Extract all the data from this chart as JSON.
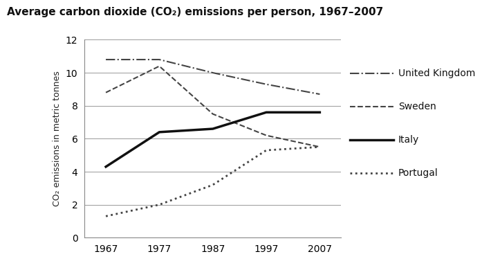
{
  "title": "Average carbon dioxide (CO₂) emissions per person, 1967–2007",
  "ylabel": "CO₂ emissions in metric tonnes",
  "years": [
    1967,
    1977,
    1987,
    1997,
    2007
  ],
  "series": {
    "United Kingdom": {
      "values": [
        10.8,
        10.8,
        10.0,
        9.3,
        8.7
      ],
      "linestyle": "-.",
      "linewidth": 1.5,
      "color": "#444444"
    },
    "Sweden": {
      "values": [
        8.8,
        10.4,
        7.5,
        6.2,
        5.5
      ],
      "linestyle": "--",
      "linewidth": 1.5,
      "color": "#444444"
    },
    "Italy": {
      "values": [
        4.3,
        6.4,
        6.6,
        7.6,
        7.6
      ],
      "linestyle": "-",
      "linewidth": 2.5,
      "color": "#111111"
    },
    "Portugal": {
      "values": [
        1.3,
        2.0,
        3.2,
        5.3,
        5.5
      ],
      "linestyle": ":",
      "linewidth": 2.0,
      "color": "#444444"
    }
  },
  "xlim": [
    1963,
    2011
  ],
  "ylim": [
    0,
    12
  ],
  "yticks": [
    0,
    2,
    4,
    6,
    8,
    10,
    12
  ],
  "xticks": [
    1967,
    1977,
    1987,
    1997,
    2007
  ],
  "background_color": "#ffffff",
  "grid_color": "#999999",
  "title_fontsize": 11,
  "label_fontsize": 9,
  "tick_fontsize": 10,
  "legend_fontsize": 10
}
